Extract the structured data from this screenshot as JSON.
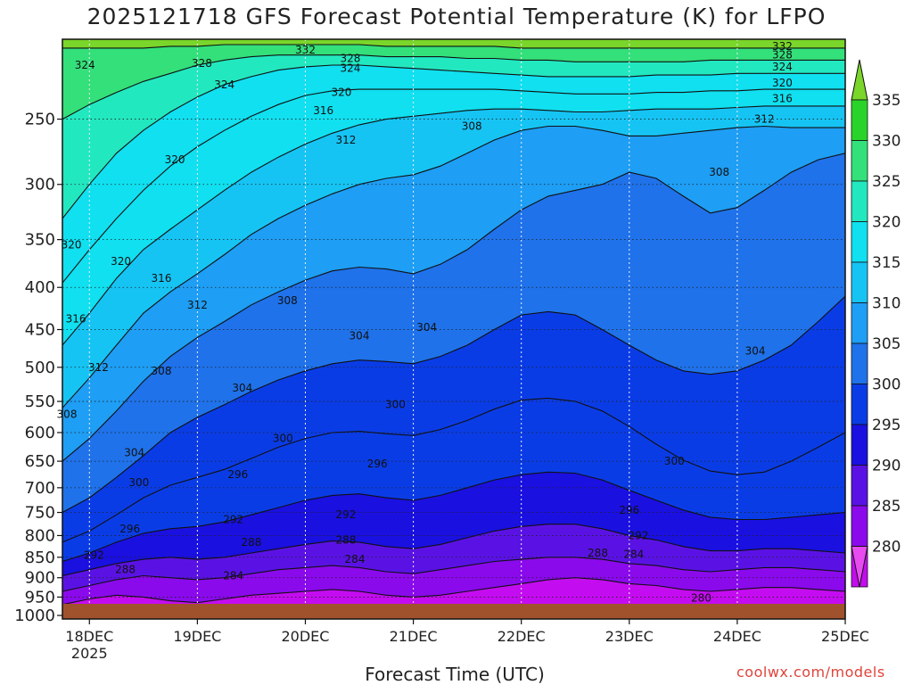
{
  "header": {
    "title": "2025121718 GFS Forecast Potential Temperature (K) for LFPO",
    "credit": "coolwx.com/models"
  },
  "chart_data": {
    "type": "heatmap",
    "title": "2025121718 GFS Forecast Potential Temperature (K) for LFPO",
    "xlabel": "Forecast Time (UTC)",
    "ylabel": "",
    "x_ticks": [
      "18DEC",
      "19DEC",
      "20DEC",
      "21DEC",
      "22DEC",
      "23DEC",
      "24DEC",
      "25DEC"
    ],
    "x_year": "2025",
    "x_range_days": [
      17.75,
      25.0
    ],
    "y_ticks": [
      250,
      300,
      350,
      400,
      450,
      500,
      550,
      600,
      650,
      700,
      750,
      800,
      850,
      900,
      950,
      1000
    ],
    "y_range_hpa": [
      200,
      1010
    ],
    "y_scale": "log",
    "grid": true,
    "colorbar": {
      "labels": [
        335,
        330,
        325,
        320,
        315,
        310,
        305,
        300,
        295,
        290,
        285,
        280
      ],
      "colors": [
        "#2ad32a",
        "#33e07a",
        "#22e8c0",
        "#10e0f0",
        "#16c4f4",
        "#1e9ef4",
        "#1f72ea",
        "#0a3ce6",
        "#1a10e0",
        "#5a12e4",
        "#8a0aec",
        "#c40cf0"
      ],
      "over_color": "#7ad62a",
      "under_color": "#e84cf0"
    },
    "surface_color": "#a0522d",
    "contours": {
      "interval": 4,
      "levels": [
        280,
        284,
        288,
        292,
        296,
        300,
        304,
        308,
        312,
        316,
        320,
        324,
        328,
        332
      ],
      "hours": [
        0,
        6,
        12,
        18,
        24,
        30,
        36,
        42,
        48,
        54,
        60,
        66,
        72,
        78,
        84,
        90,
        96,
        102,
        108,
        114,
        120,
        126,
        132,
        138,
        144,
        150,
        156,
        162,
        168,
        174
      ],
      "pressure_hpa": {
        "280": [
          1000,
          1000,
          1000,
          1000,
          1000,
          1000,
          1000,
          1000,
          1000,
          1000,
          1000,
          1000,
          1000,
          1000,
          1000,
          1000,
          1000,
          1000,
          1000,
          1000,
          1000,
          1000,
          1000,
          1000,
          1000,
          1000,
          975,
          970,
          975,
          980
        ],
        "284": [
          970,
          955,
          945,
          950,
          960,
          965,
          955,
          945,
          940,
          935,
          930,
          935,
          945,
          950,
          945,
          935,
          925,
          915,
          905,
          900,
          905,
          915,
          920,
          930,
          935,
          930,
          925,
          925,
          930,
          935
        ],
        "288": [
          935,
          920,
          905,
          895,
          900,
          905,
          900,
          890,
          880,
          875,
          870,
          875,
          885,
          890,
          880,
          870,
          860,
          855,
          850,
          850,
          855,
          865,
          870,
          880,
          885,
          880,
          875,
          875,
          880,
          885
        ],
        "292": [
          895,
          880,
          865,
          855,
          850,
          855,
          850,
          840,
          830,
          820,
          812,
          815,
          825,
          830,
          820,
          805,
          790,
          780,
          775,
          775,
          785,
          800,
          810,
          825,
          835,
          835,
          830,
          830,
          835,
          840
        ],
        "296": [
          860,
          840,
          815,
          795,
          785,
          780,
          770,
          755,
          740,
          725,
          715,
          712,
          720,
          725,
          715,
          700,
          685,
          675,
          670,
          672,
          685,
          705,
          725,
          745,
          760,
          765,
          765,
          760,
          755,
          750
        ],
        "300": [
          815,
          790,
          755,
          720,
          695,
          680,
          665,
          645,
          625,
          610,
          600,
          598,
          602,
          605,
          595,
          580,
          562,
          548,
          545,
          550,
          565,
          590,
          620,
          648,
          668,
          675,
          670,
          650,
          625,
          600
        ],
        "304": [
          750,
          720,
          680,
          640,
          600,
          575,
          555,
          535,
          518,
          505,
          495,
          490,
          492,
          495,
          485,
          470,
          450,
          432,
          428,
          432,
          450,
          470,
          490,
          505,
          510,
          505,
          490,
          470,
          440,
          410
        ],
        "308": [
          650,
          610,
          565,
          520,
          485,
          460,
          440,
          420,
          405,
          392,
          382,
          378,
          380,
          385,
          375,
          360,
          340,
          322,
          310,
          305,
          300,
          290,
          295,
          310,
          325,
          320,
          305,
          290,
          280,
          275
        ],
        "312": [
          560,
          515,
          470,
          430,
          405,
          385,
          365,
          345,
          330,
          318,
          308,
          300,
          295,
          292,
          285,
          275,
          265,
          258,
          255,
          255,
          258,
          262,
          262,
          260,
          258,
          256,
          255,
          256,
          256,
          256
        ],
        "316": [
          470,
          430,
          390,
          360,
          340,
          322,
          305,
          290,
          278,
          268,
          260,
          254,
          250,
          248,
          246,
          244,
          243,
          243,
          244,
          245,
          245,
          244,
          243,
          243,
          243,
          242,
          241,
          241,
          241,
          241
        ],
        "320": [
          395,
          360,
          330,
          305,
          285,
          270,
          258,
          248,
          240,
          234,
          231,
          230,
          230,
          230,
          230,
          230,
          230,
          231,
          232,
          233,
          233,
          233,
          232,
          232,
          231,
          231,
          230,
          230,
          230,
          230
        ],
        "324": [
          330,
          300,
          275,
          258,
          245,
          235,
          227,
          222,
          218,
          216,
          215,
          215,
          216,
          217,
          218,
          219,
          220,
          221,
          222,
          222,
          222,
          222,
          221,
          221,
          221,
          220,
          220,
          220,
          220,
          220
        ],
        "328": [
          250,
          240,
          232,
          225,
          220,
          215,
          212,
          210,
          209,
          209,
          209,
          209,
          210,
          210,
          210,
          211,
          211,
          212,
          212,
          213,
          213,
          213,
          213,
          213,
          212,
          212,
          212,
          212,
          212,
          212
        ],
        "332": [
          205,
          205,
          205,
          205,
          204,
          204,
          203,
          203,
          203,
          203,
          203,
          203,
          204,
          204,
          204,
          204,
          204,
          205,
          205,
          205,
          205,
          205,
          205,
          205,
          205,
          205,
          205,
          205,
          205,
          205
        ]
      },
      "labels": [
        {
          "text": "332",
          "hour": 54,
          "hpa": 206
        },
        {
          "text": "332",
          "hour": 160,
          "hpa": 204
        },
        {
          "text": "328",
          "hour": 64,
          "hpa": 211
        },
        {
          "text": "328",
          "hour": 160,
          "hpa": 209
        },
        {
          "text": "328",
          "hour": 31,
          "hpa": 214
        },
        {
          "text": "324",
          "hour": 64,
          "hpa": 217
        },
        {
          "text": "324",
          "hour": 160,
          "hpa": 216
        },
        {
          "text": "324",
          "hour": 36,
          "hpa": 227
        },
        {
          "text": "324",
          "hour": 5,
          "hpa": 215
        },
        {
          "text": "320",
          "hour": 62,
          "hpa": 232
        },
        {
          "text": "320",
          "hour": 160,
          "hpa": 226
        },
        {
          "text": "316",
          "hour": 58,
          "hpa": 244
        },
        {
          "text": "316",
          "hour": 160,
          "hpa": 236
        },
        {
          "text": "312",
          "hour": 63,
          "hpa": 265
        },
        {
          "text": "312",
          "hour": 156,
          "hpa": 250
        },
        {
          "text": "308",
          "hour": 91,
          "hpa": 255
        },
        {
          "text": "308",
          "hour": 146,
          "hpa": 290
        },
        {
          "text": "320",
          "hour": 25,
          "hpa": 280
        },
        {
          "text": "320",
          "hour": 2,
          "hpa": 355
        },
        {
          "text": "320",
          "hour": 13,
          "hpa": 372
        },
        {
          "text": "316",
          "hour": 22,
          "hpa": 390
        },
        {
          "text": "316",
          "hour": 3,
          "hpa": 437
        },
        {
          "text": "312",
          "hour": 30,
          "hpa": 420
        },
        {
          "text": "308",
          "hour": 50,
          "hpa": 415
        },
        {
          "text": "312",
          "hour": 8,
          "hpa": 500
        },
        {
          "text": "308",
          "hour": 22,
          "hpa": 505
        },
        {
          "text": "304",
          "hour": 40,
          "hpa": 530
        },
        {
          "text": "304",
          "hour": 66,
          "hpa": 458
        },
        {
          "text": "304",
          "hour": 81,
          "hpa": 447
        },
        {
          "text": "304",
          "hour": 154,
          "hpa": 478
        },
        {
          "text": "308",
          "hour": 1,
          "hpa": 570
        },
        {
          "text": "300",
          "hour": 49,
          "hpa": 610
        },
        {
          "text": "300",
          "hour": 74,
          "hpa": 555
        },
        {
          "text": "304",
          "hour": 16,
          "hpa": 635
        },
        {
          "text": "300",
          "hour": 17,
          "hpa": 690
        },
        {
          "text": "296",
          "hour": 39,
          "hpa": 675
        },
        {
          "text": "296",
          "hour": 70,
          "hpa": 655
        },
        {
          "text": "300",
          "hour": 136,
          "hpa": 650
        },
        {
          "text": "292",
          "hour": 38,
          "hpa": 765
        },
        {
          "text": "292",
          "hour": 63,
          "hpa": 755
        },
        {
          "text": "296",
          "hour": 126,
          "hpa": 745
        },
        {
          "text": "296",
          "hour": 15,
          "hpa": 785
        },
        {
          "text": "292",
          "hour": 128,
          "hpa": 800
        },
        {
          "text": "292",
          "hour": 7,
          "hpa": 845
        },
        {
          "text": "288",
          "hour": 42,
          "hpa": 815
        },
        {
          "text": "288",
          "hour": 63,
          "hpa": 810
        },
        {
          "text": "288",
          "hour": 119,
          "hpa": 840
        },
        {
          "text": "284",
          "hour": 127,
          "hpa": 843
        },
        {
          "text": "288",
          "hour": 14,
          "hpa": 880
        },
        {
          "text": "284",
          "hour": 38,
          "hpa": 895
        },
        {
          "text": "284",
          "hour": 65,
          "hpa": 855
        },
        {
          "text": "280",
          "hour": 142,
          "hpa": 952
        }
      ]
    }
  }
}
